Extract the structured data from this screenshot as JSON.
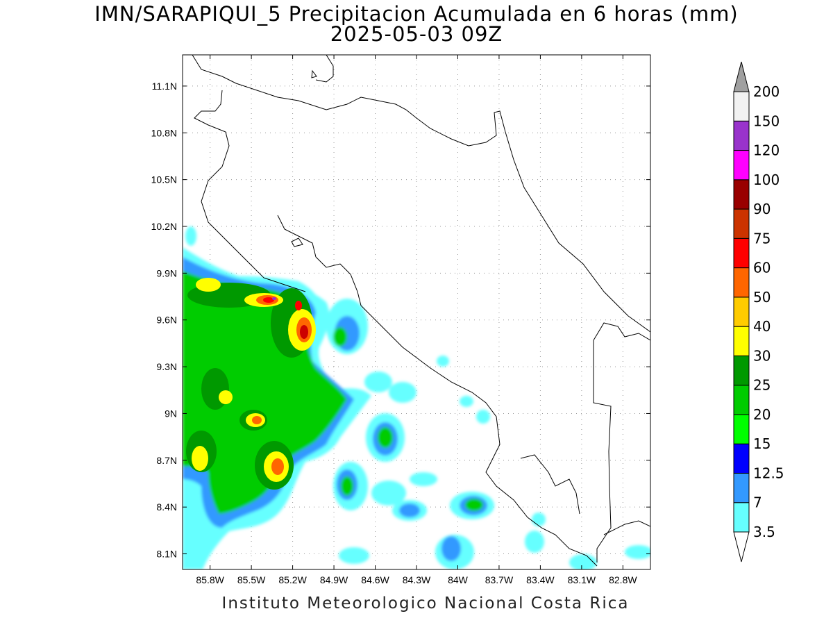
{
  "title": {
    "line1": "IMN/SARAPIQUI_5 Precipitacion Acumulada en 6 horas (mm)",
    "line2": "2025-05-03 09Z"
  },
  "footer": "Instituto Meteorologico Nacional Costa Rica",
  "map": {
    "lon_range": [
      -86.0,
      -82.6
    ],
    "lat_range": [
      8.0,
      11.3
    ],
    "x_ticks": [
      "85.8W",
      "85.5W",
      "85.2W",
      "84.9W",
      "84.6W",
      "84.3W",
      "84W",
      "83.7W",
      "83.4W",
      "83.1W",
      "82.8W"
    ],
    "y_ticks": [
      "8.1N",
      "8.4N",
      "8.7N",
      "9N",
      "9.3N",
      "9.6N",
      "9.9N",
      "10.2N",
      "10.5N",
      "10.8N",
      "11.1N"
    ],
    "grid": "dotted"
  },
  "colorbar": {
    "labels": [
      "3.5",
      "7",
      "12.5",
      "15",
      "20",
      "25",
      "30",
      "40",
      "50",
      "60",
      "75",
      "90",
      "100",
      "120",
      "150",
      "200"
    ],
    "colors": [
      "#66ffff",
      "#3399ff",
      "#0000ff",
      "#00ff00",
      "#00cc00",
      "#009900",
      "#ffff00",
      "#ffcc00",
      "#ff6600",
      "#ff0000",
      "#cc3300",
      "#990000",
      "#ff00ff",
      "#9933cc",
      "#f2f2f2"
    ],
    "top_arrow_color": "#a0a0a0",
    "bottom_arrow_color": "#ffffff"
  }
}
